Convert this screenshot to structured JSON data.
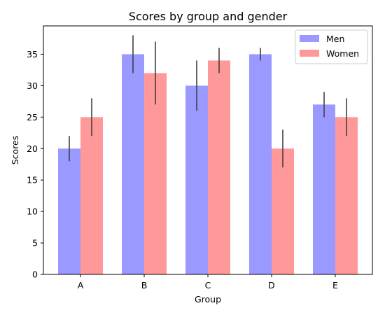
{
  "chart_data": {
    "type": "bar",
    "title": "Scores by group and gender",
    "xlabel": "Group",
    "ylabel": "Scores",
    "categories": [
      "A",
      "B",
      "C",
      "D",
      "E"
    ],
    "ylim": [
      0,
      39.5
    ],
    "yticks": [
      0,
      5,
      10,
      15,
      20,
      25,
      30,
      35
    ],
    "grid": false,
    "legend_position": "top-right",
    "series": [
      {
        "name": "Men",
        "color": "#9999ff",
        "values": [
          20,
          35,
          30,
          35,
          27
        ],
        "errors": [
          2,
          3,
          4,
          1,
          2
        ]
      },
      {
        "name": "Women",
        "color": "#ff9999",
        "values": [
          25,
          32,
          34,
          20,
          25
        ],
        "errors": [
          3,
          5,
          2,
          3,
          3
        ]
      }
    ],
    "error_bar_color": "#404040"
  }
}
